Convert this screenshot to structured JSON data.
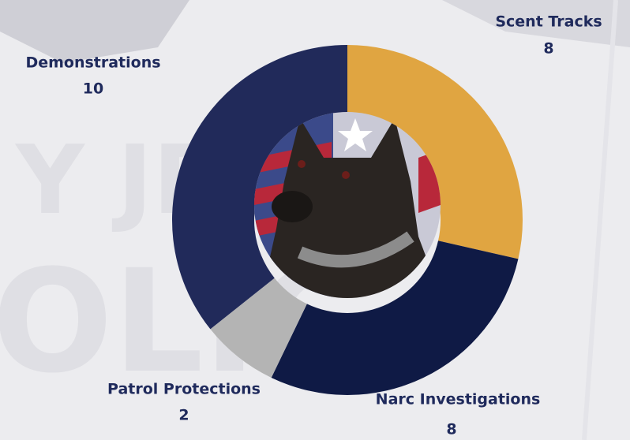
{
  "chart_data": {
    "type": "donut",
    "categories": [
      "Scent Tracks",
      "Narc Investigations",
      "Patrol Protections",
      "Demonstrations"
    ],
    "values": [
      8,
      8,
      2,
      10
    ],
    "colors": [
      "#e0a541",
      "#0f1a45",
      "#b4b4b4",
      "#212a5a"
    ]
  }
}
